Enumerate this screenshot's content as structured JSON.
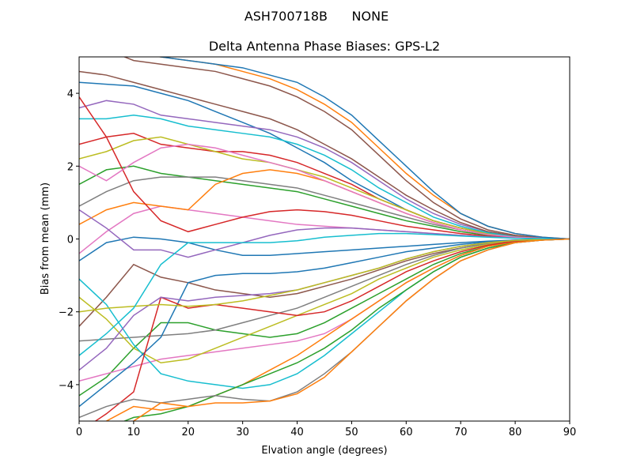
{
  "chart_data": {
    "type": "line",
    "suptitle": "ASH700718B      NONE",
    "title": "Delta Antenna Phase Biases: GPS-L2",
    "xlabel": "Elvation angle (degrees)",
    "ylabel": "Bias from mean (mm)",
    "x": [
      0,
      5,
      10,
      15,
      20,
      25,
      30,
      35,
      40,
      45,
      50,
      55,
      60,
      65,
      70,
      75,
      80,
      85,
      90
    ],
    "xlim": [
      0,
      90
    ],
    "xticks": [
      0,
      10,
      20,
      30,
      40,
      50,
      60,
      70,
      80,
      90
    ],
    "ylim": [
      -5,
      5
    ],
    "yticks": [
      {
        "value": -4,
        "label": "−4"
      },
      {
        "value": -2,
        "label": "−2"
      },
      0,
      2,
      4
    ],
    "series": [
      {
        "color": "#1f77b4",
        "values": [
          4.3,
          4.25,
          4.2,
          4.0,
          3.8,
          3.5,
          3.2,
          2.9,
          2.5,
          2.1,
          1.6,
          1.2,
          0.8,
          0.5,
          0.3,
          0.15,
          0.05,
          0.02,
          0
        ]
      },
      {
        "color": "#ff7f0e",
        "values": [
          5.5,
          5.3,
          5.1,
          5.0,
          4.9,
          4.8,
          4.6,
          4.4,
          4.1,
          3.7,
          3.2,
          2.5,
          1.8,
          1.2,
          0.7,
          0.35,
          0.15,
          0.05,
          0
        ]
      },
      {
        "color": "#2ca02c",
        "values": [
          1.5,
          1.9,
          2.0,
          1.8,
          1.7,
          1.6,
          1.5,
          1.4,
          1.3,
          1.1,
          0.9,
          0.7,
          0.5,
          0.35,
          0.2,
          0.1,
          0.05,
          0.02,
          0
        ]
      },
      {
        "color": "#d62728",
        "values": [
          2.6,
          2.8,
          2.9,
          2.6,
          2.5,
          2.4,
          2.4,
          2.3,
          2.1,
          1.8,
          1.5,
          1.1,
          0.8,
          0.5,
          0.3,
          0.15,
          0.05,
          0.02,
          0
        ]
      },
      {
        "color": "#9467bd",
        "values": [
          3.6,
          3.8,
          3.7,
          3.4,
          3.3,
          3.2,
          3.1,
          3.0,
          2.8,
          2.5,
          2.1,
          1.6,
          1.1,
          0.7,
          0.4,
          0.2,
          0.08,
          0.03,
          0
        ]
      },
      {
        "color": "#8c564b",
        "values": [
          4.6,
          4.5,
          4.3,
          4.1,
          3.9,
          3.7,
          3.5,
          3.3,
          3.0,
          2.6,
          2.2,
          1.7,
          1.2,
          0.8,
          0.45,
          0.2,
          0.08,
          0.03,
          0
        ]
      },
      {
        "color": "#e377c2",
        "values": [
          -0.4,
          0.2,
          0.7,
          0.9,
          0.8,
          0.7,
          0.6,
          0.5,
          0.4,
          0.35,
          0.3,
          0.25,
          0.2,
          0.15,
          0.1,
          0.06,
          0.03,
          0.01,
          0
        ]
      },
      {
        "color": "#7f7f7f",
        "values": [
          0.9,
          1.3,
          1.6,
          1.7,
          1.7,
          1.7,
          1.6,
          1.5,
          1.4,
          1.2,
          1.0,
          0.8,
          0.6,
          0.4,
          0.25,
          0.12,
          0.05,
          0.02,
          0
        ]
      },
      {
        "color": "#bcbd22",
        "values": [
          2.2,
          2.4,
          2.7,
          2.8,
          2.6,
          2.4,
          2.2,
          2.1,
          1.9,
          1.7,
          1.4,
          1.1,
          0.8,
          0.5,
          0.3,
          0.15,
          0.05,
          0.02,
          0
        ]
      },
      {
        "color": "#17becf",
        "values": [
          3.3,
          3.3,
          3.4,
          3.3,
          3.1,
          3.0,
          2.9,
          2.8,
          2.6,
          2.3,
          1.9,
          1.4,
          1.0,
          0.6,
          0.35,
          0.17,
          0.06,
          0.02,
          0
        ]
      },
      {
        "color": "#1f77b4",
        "values": [
          -0.6,
          -0.1,
          0.05,
          0.0,
          -0.1,
          -0.3,
          -0.45,
          -0.45,
          -0.4,
          -0.35,
          -0.3,
          -0.25,
          -0.2,
          -0.15,
          -0.1,
          -0.06,
          -0.03,
          -0.01,
          0
        ]
      },
      {
        "color": "#ff7f0e",
        "values": [
          0.4,
          0.8,
          1.0,
          0.9,
          0.8,
          1.5,
          1.8,
          1.9,
          1.8,
          1.6,
          1.3,
          1.0,
          0.7,
          0.45,
          0.25,
          0.12,
          0.05,
          0.02,
          0
        ]
      },
      {
        "color": "#2ca02c",
        "values": [
          -4.3,
          -3.8,
          -3.0,
          -2.3,
          -2.3,
          -2.5,
          -2.6,
          -2.7,
          -2.6,
          -2.3,
          -1.9,
          -1.5,
          -1.1,
          -0.7,
          -0.4,
          -0.2,
          -0.08,
          -0.03,
          0
        ]
      },
      {
        "color": "#d62728",
        "values": [
          3.9,
          2.8,
          1.3,
          0.5,
          0.2,
          0.4,
          0.6,
          0.75,
          0.8,
          0.75,
          0.65,
          0.5,
          0.35,
          0.25,
          0.15,
          0.08,
          0.03,
          0.01,
          0
        ]
      },
      {
        "color": "#9467bd",
        "values": [
          0.8,
          0.3,
          -0.3,
          -0.3,
          -0.5,
          -0.3,
          -0.1,
          0.1,
          0.25,
          0.3,
          0.3,
          0.25,
          0.2,
          0.15,
          0.1,
          0.06,
          0.03,
          0.01,
          0
        ]
      },
      {
        "color": "#8c564b",
        "values": [
          -2.4,
          -1.6,
          -0.7,
          -1.05,
          -1.2,
          -1.4,
          -1.5,
          -1.6,
          -1.5,
          -1.3,
          -1.1,
          -0.85,
          -0.6,
          -0.4,
          -0.25,
          -0.12,
          -0.05,
          -0.02,
          0
        ]
      },
      {
        "color": "#e377c2",
        "values": [
          -3.9,
          -3.7,
          -3.5,
          -3.3,
          -3.2,
          -3.1,
          -3.0,
          -2.9,
          -2.8,
          -2.6,
          -2.2,
          -1.7,
          -1.2,
          -0.8,
          -0.45,
          -0.2,
          -0.08,
          -0.03,
          0
        ]
      },
      {
        "color": "#7f7f7f",
        "values": [
          -2.8,
          -2.75,
          -2.7,
          -2.65,
          -2.6,
          -2.5,
          -2.3,
          -2.1,
          -1.9,
          -1.6,
          -1.3,
          -1.0,
          -0.7,
          -0.45,
          -0.25,
          -0.12,
          -0.05,
          -0.02,
          0
        ]
      },
      {
        "color": "#bcbd22",
        "values": [
          -1.6,
          -2.2,
          -3.0,
          -3.4,
          -3.3,
          -3.0,
          -2.7,
          -2.4,
          -2.1,
          -1.8,
          -1.5,
          -1.1,
          -0.8,
          -0.5,
          -0.3,
          -0.15,
          -0.06,
          -0.02,
          0
        ]
      },
      {
        "color": "#17becf",
        "values": [
          -1.1,
          -1.8,
          -2.9,
          -3.7,
          -3.9,
          -4.0,
          -4.1,
          -4.0,
          -3.7,
          -3.2,
          -2.6,
          -2.0,
          -1.4,
          -0.9,
          -0.5,
          -0.25,
          -0.1,
          -0.03,
          0
        ]
      },
      {
        "color": "#1f77b4",
        "values": [
          -4.6,
          -4.0,
          -3.4,
          -2.7,
          -1.2,
          -1.0,
          -0.95,
          -0.95,
          -0.9,
          -0.8,
          -0.65,
          -0.5,
          -0.35,
          -0.25,
          -0.15,
          -0.08,
          -0.03,
          -0.01,
          0
        ]
      },
      {
        "color": "#ff7f0e",
        "values": [
          -5.5,
          -5.0,
          -4.6,
          -4.7,
          -4.6,
          -4.3,
          -4.0,
          -3.6,
          -3.2,
          -2.7,
          -2.2,
          -1.7,
          -1.2,
          -0.8,
          -0.45,
          -0.2,
          -0.08,
          -0.03,
          0
        ]
      },
      {
        "color": "#2ca02c",
        "values": [
          -5.5,
          -5.2,
          -4.9,
          -4.8,
          -4.6,
          -4.3,
          -4.0,
          -3.7,
          -3.4,
          -3.0,
          -2.5,
          -1.9,
          -1.4,
          -0.9,
          -0.5,
          -0.25,
          -0.1,
          -0.03,
          0
        ]
      },
      {
        "color": "#d62728",
        "values": [
          -5.3,
          -4.8,
          -4.2,
          -1.6,
          -1.9,
          -1.8,
          -1.9,
          -2.0,
          -2.1,
          -2.0,
          -1.7,
          -1.3,
          -0.9,
          -0.6,
          -0.35,
          -0.17,
          -0.06,
          -0.02,
          0
        ]
      },
      {
        "color": "#9467bd",
        "values": [
          -3.6,
          -3.0,
          -2.1,
          -1.6,
          -1.7,
          -1.6,
          -1.55,
          -1.5,
          -1.4,
          -1.2,
          -1.0,
          -0.8,
          -0.55,
          -0.35,
          -0.2,
          -0.1,
          -0.04,
          -0.01,
          0
        ]
      },
      {
        "color": "#8c564b",
        "values": [
          5.5,
          5.2,
          4.9,
          4.8,
          4.7,
          4.6,
          4.4,
          4.2,
          3.9,
          3.5,
          3.0,
          2.3,
          1.6,
          1.0,
          0.55,
          0.25,
          0.1,
          0.03,
          0
        ]
      },
      {
        "color": "#e377c2",
        "values": [
          2.0,
          1.6,
          2.1,
          2.5,
          2.6,
          2.5,
          2.3,
          2.1,
          1.9,
          1.6,
          1.3,
          1.0,
          0.7,
          0.45,
          0.25,
          0.12,
          0.05,
          0.02,
          0
        ]
      },
      {
        "color": "#7f7f7f",
        "values": [
          -4.9,
          -4.6,
          -4.4,
          -4.5,
          -4.4,
          -4.3,
          -4.4,
          -4.45,
          -4.2,
          -3.7,
          -3.1,
          -2.4,
          -1.7,
          -1.1,
          -0.6,
          -0.3,
          -0.1,
          -0.03,
          0
        ]
      },
      {
        "color": "#bcbd22",
        "values": [
          -2.0,
          -1.9,
          -1.85,
          -1.8,
          -1.85,
          -1.8,
          -1.7,
          -1.55,
          -1.4,
          -1.2,
          -1.0,
          -0.8,
          -0.55,
          -0.35,
          -0.2,
          -0.1,
          -0.04,
          -0.01,
          0
        ]
      },
      {
        "color": "#17becf",
        "values": [
          -3.2,
          -2.6,
          -1.9,
          -0.7,
          -0.1,
          -0.1,
          -0.1,
          -0.1,
          -0.05,
          0.05,
          0.1,
          0.15,
          0.15,
          0.12,
          0.08,
          0.05,
          0.02,
          0.01,
          0
        ]
      },
      {
        "color": "#1f77b4",
        "values": [
          5.5,
          5.3,
          5.1,
          5.0,
          4.9,
          4.8,
          4.7,
          4.5,
          4.3,
          3.9,
          3.4,
          2.7,
          2.0,
          1.3,
          0.7,
          0.35,
          0.15,
          0.05,
          0
        ]
      },
      {
        "color": "#ff7f0e",
        "values": [
          -5.5,
          -5.3,
          -5.0,
          -4.5,
          -4.6,
          -4.5,
          -4.5,
          -4.45,
          -4.25,
          -3.8,
          -3.1,
          -2.4,
          -1.7,
          -1.1,
          -0.6,
          -0.3,
          -0.1,
          -0.03,
          0
        ]
      }
    ]
  }
}
